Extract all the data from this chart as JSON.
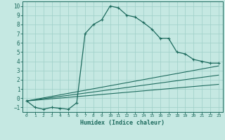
{
  "xlabel": "Humidex (Indice chaleur)",
  "xlim": [
    -0.5,
    23.5
  ],
  "ylim": [
    -1.5,
    10.5
  ],
  "xticks": [
    0,
    1,
    2,
    3,
    4,
    5,
    6,
    7,
    8,
    9,
    10,
    11,
    12,
    13,
    14,
    15,
    16,
    17,
    18,
    19,
    20,
    21,
    22,
    23
  ],
  "yticks": [
    -1,
    0,
    1,
    2,
    3,
    4,
    5,
    6,
    7,
    8,
    9,
    10
  ],
  "bg_color": "#c5e8e2",
  "line_color": "#1e6b5e",
  "grid_color": "#9ecfc8",
  "curve_x": [
    0,
    1,
    2,
    3,
    4,
    5,
    6,
    7,
    8,
    9,
    10,
    11,
    12,
    13,
    14,
    15,
    16,
    17,
    18,
    19,
    20,
    21,
    22,
    23
  ],
  "curve_y": [
    -0.3,
    -1.0,
    -1.2,
    -1.0,
    -1.1,
    -1.2,
    -0.5,
    7.0,
    8.0,
    8.5,
    10.0,
    9.8,
    9.0,
    8.8,
    8.2,
    7.5,
    6.5,
    6.5,
    5.0,
    4.8,
    4.2,
    4.0,
    3.8,
    3.8
  ],
  "line1_end_y": 1.5,
  "line2_end_y": 2.5,
  "line3_end_y": 3.5,
  "line_start_y": -0.3,
  "line_end_x": 23
}
